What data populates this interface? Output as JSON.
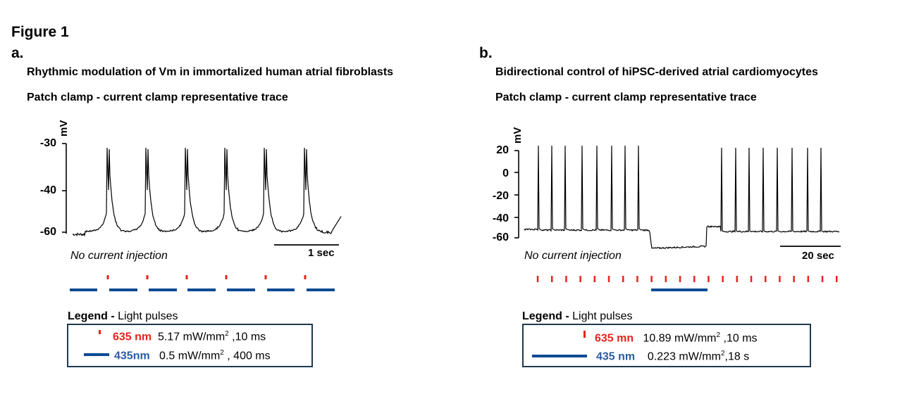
{
  "figure_title": "Figure 1",
  "colors": {
    "red_pulse": "#e8241c",
    "blue_pulse": "#0d4a93",
    "trace": "#000000"
  },
  "panel_a": {
    "letter": "a.",
    "title": "Rhythmic modulation of Vm in immortalized human atrial fibroblasts",
    "subtitle": "Patch clamp - current clamp representative trace",
    "y_unit": "mV",
    "y_ticks": [
      "-30",
      "-40",
      "-60"
    ],
    "scale_bar": "1 sec",
    "note": "No current injection",
    "legend": {
      "title_bold": "Legend -",
      "title_rest": " Light pulses",
      "red_wavelength": "635 nm",
      "red_params_main": "5.17 mW/mm",
      "red_params_sup": "2",
      "red_params_tail": " ,10 ms",
      "blue_wavelength": "435nm",
      "blue_params_main": "0.5 mW/mm",
      "blue_params_sup": "2",
      "blue_params_tail": " , 400 ms"
    }
  },
  "panel_b": {
    "letter": "b.",
    "title": "Bidirectional control of hiPSC-derived atrial cardiomyocytes",
    "subtitle": "Patch clamp - current clamp representative trace",
    "y_unit": "mV",
    "y_ticks": [
      "20",
      "0",
      "-20",
      "-40",
      "-60"
    ],
    "scale_bar": "20 sec",
    "note": "No current injection",
    "legend": {
      "title_bold": "Legend -",
      "title_rest": " Light pulses",
      "red_wavelength": "635 mn",
      "red_params_main": "10.89 mW/mm",
      "red_params_sup": "2",
      "red_params_tail": " ,10 ms",
      "blue_wavelength": "435 nm",
      "blue_params_main": "0.223 mW/mm",
      "blue_params_sup": "2",
      "blue_params_tail": ",18 s"
    }
  }
}
